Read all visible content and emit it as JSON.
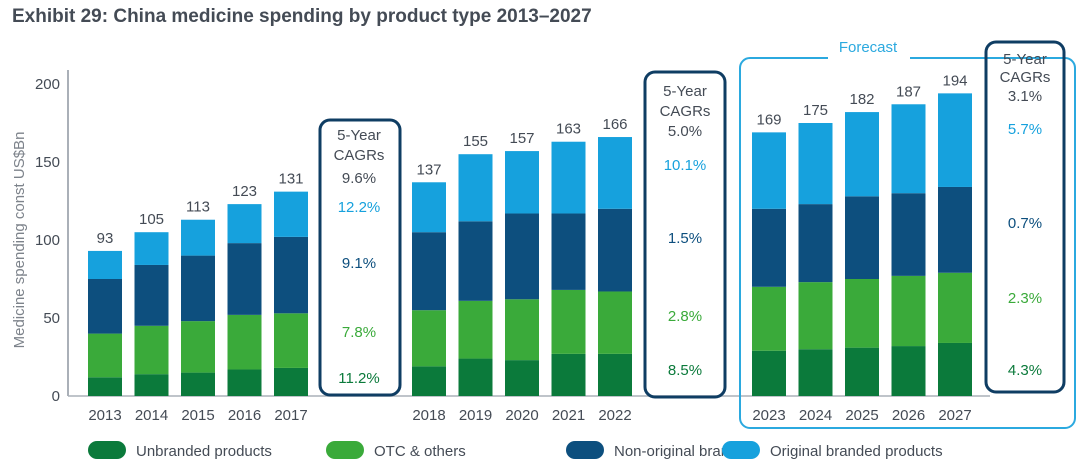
{
  "chart_data": {
    "type": "bar",
    "stacked": true,
    "title": "Exhibit 29: China medicine spending by product type 2013–2027",
    "ylabel": "Medicine spending const US$Bn",
    "xlabel": "",
    "ylim": [
      0,
      200
    ],
    "yticks": [
      "0",
      "50",
      "100",
      "150",
      "200"
    ],
    "forecast_label": "Forecast",
    "categories": [
      "2013",
      "2014",
      "2015",
      "2016",
      "2017",
      "2018",
      "2019",
      "2020",
      "2021",
      "2022",
      "2023",
      "2024",
      "2025",
      "2026",
      "2027"
    ],
    "groups": [
      {
        "years": [
          "2013",
          "2014",
          "2015",
          "2016",
          "2017"
        ],
        "forecast": false
      },
      {
        "years": [
          "2018",
          "2019",
          "2020",
          "2021",
          "2022"
        ],
        "forecast": false
      },
      {
        "years": [
          "2023",
          "2024",
          "2025",
          "2026",
          "2027"
        ],
        "forecast": true
      }
    ],
    "series": [
      {
        "name": "Unbranded products",
        "color": "#0b7a3b",
        "values": [
          12,
          14,
          15,
          17,
          18,
          19,
          24,
          23,
          27,
          27,
          29,
          30,
          31,
          32,
          34
        ]
      },
      {
        "name": "OTC & others",
        "color": "#3aaa3a",
        "values": [
          28,
          31,
          33,
          35,
          35,
          36,
          37,
          39,
          41,
          40,
          41,
          43,
          44,
          45,
          45
        ]
      },
      {
        "name": "Non-original brands",
        "color": "#0d4f7e",
        "values": [
          35,
          39,
          42,
          46,
          49,
          50,
          51,
          55,
          49,
          53,
          50,
          50,
          53,
          53,
          55
        ]
      },
      {
        "name": "Original branded products",
        "color": "#16a1dd",
        "values": [
          18,
          21,
          23,
          25,
          29,
          32,
          43,
          40,
          46,
          46,
          49,
          52,
          54,
          57,
          60
        ]
      }
    ],
    "totals": [
      "93",
      "105",
      "113",
      "123",
      "131",
      "137",
      "155",
      "157",
      "163",
      "166",
      "169",
      "175",
      "182",
      "187",
      "194"
    ],
    "cagr_boxes": [
      {
        "header": "5-Year CAGRs",
        "total": "9.6%",
        "original": "12.2%",
        "non_original": "9.1%",
        "otc": "7.8%",
        "unbranded": "11.2%"
      },
      {
        "header": "5-Year CAGRs",
        "total": "5.0%",
        "original": "10.1%",
        "non_original": "1.5%",
        "otc": "2.8%",
        "unbranded": "8.5%"
      },
      {
        "header": "5-Year CAGRs",
        "total": "3.1%",
        "original": "5.7%",
        "non_original": "0.7%",
        "otc": "2.3%",
        "unbranded": "4.3%"
      }
    ]
  },
  "colors": {
    "unbranded": "#0b7a3b",
    "otc": "#3aaa3a",
    "non_original": "#0d4f7e",
    "original": "#16a1dd",
    "box_outline": "#0f3d63",
    "forecast_outline": "#2ba9df",
    "text": "#444b55",
    "axis": "#aab0b8"
  }
}
